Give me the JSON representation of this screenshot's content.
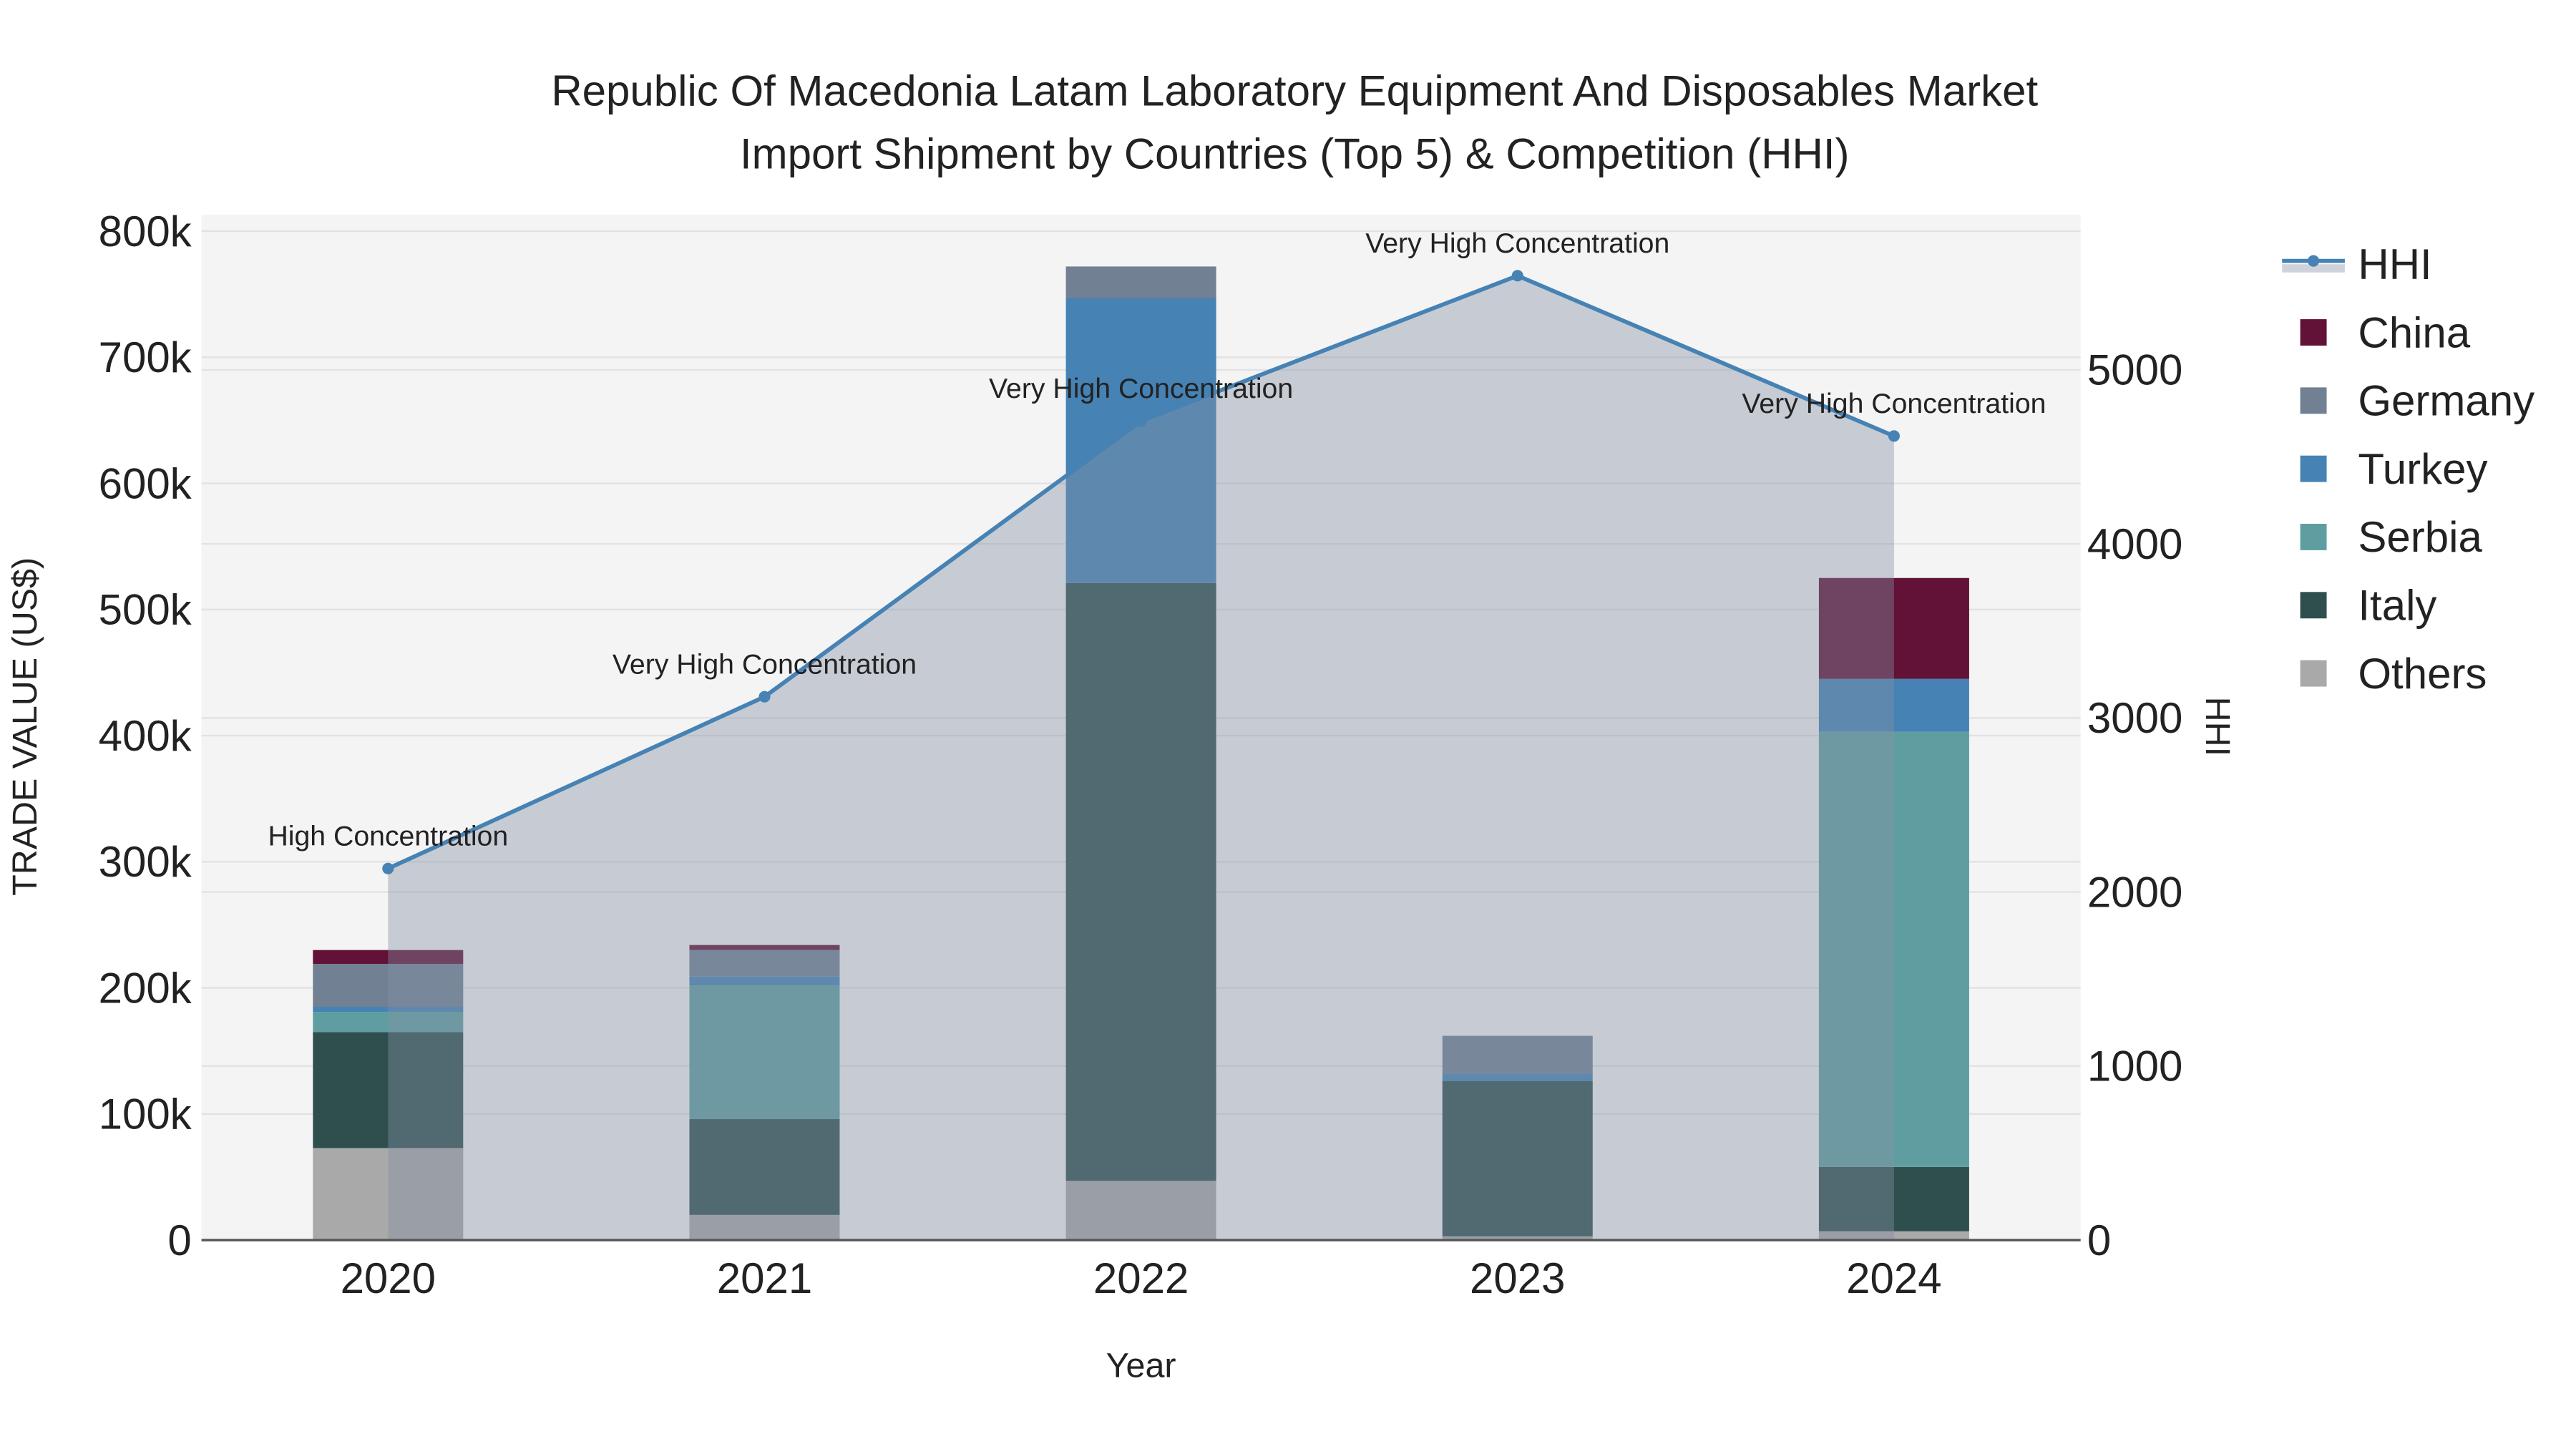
{
  "chart_data": {
    "type": "bar",
    "stacked": true,
    "title_line1": "Republic Of Macedonia Latam Laboratory Equipment And Disposables Market",
    "title_line2": "Import Shipment by Countries (Top 5) & Competition (HHI)",
    "xlabel": "Year",
    "ylabel": "TRADE VALUE (US$)",
    "y2label": "HHI",
    "categories": [
      "2020",
      "2021",
      "2022",
      "2023",
      "2024"
    ],
    "ylim": [
      0,
      800000
    ],
    "y_ticks": [
      0,
      100000,
      200000,
      300000,
      400000,
      500000,
      600000,
      700000,
      800000
    ],
    "y_tick_labels": [
      "0",
      "100k",
      "200k",
      "300k",
      "400k",
      "500k",
      "600k",
      "700k",
      "800k"
    ],
    "y2lim": [
      0,
      5800
    ],
    "y2_ticks": [
      0,
      1000,
      2000,
      3000,
      4000,
      5000
    ],
    "y2_tick_labels": [
      "0",
      "1000",
      "2000",
      "3000",
      "4000",
      "5000"
    ],
    "grid": true,
    "legend_position": "right",
    "series": [
      {
        "name": "Others",
        "color": "#a9a9a9",
        "values": [
          73000,
          20000,
          47000,
          3000,
          7000
        ]
      },
      {
        "name": "Italy",
        "color": "#2f4f4f",
        "values": [
          92000,
          76000,
          474000,
          123000,
          51000
        ]
      },
      {
        "name": "Serbia",
        "color": "#5f9ea0",
        "values": [
          16000,
          106000,
          0,
          0,
          345000
        ]
      },
      {
        "name": "Turkey",
        "color": "#4682b4",
        "values": [
          4000,
          7000,
          226000,
          6000,
          42000
        ]
      },
      {
        "name": "Germany",
        "color": "#718093",
        "values": [
          34000,
          21000,
          25000,
          30000,
          0
        ]
      },
      {
        "name": "China",
        "color": "#611236",
        "values": [
          11000,
          4000,
          0,
          0,
          80000
        ]
      }
    ],
    "legend_order": [
      "HHI",
      "China",
      "Germany",
      "Turkey",
      "Serbia",
      "Italy",
      "Others"
    ],
    "hhi": {
      "name": "HHI",
      "color": "#4682b4",
      "values": [
        2135,
        3122,
        4706,
        5541,
        4620
      ],
      "annotations": [
        "High Concentration",
        "Very High Concentration",
        "Very High Concentration",
        "Very High Concentration",
        "Very High Concentration"
      ]
    }
  }
}
